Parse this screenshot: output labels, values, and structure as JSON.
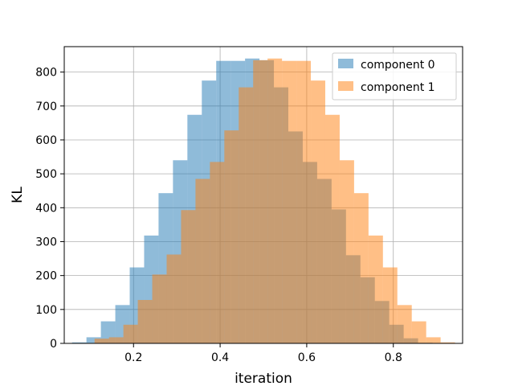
{
  "chart_data": {
    "type": "bar",
    "title": "",
    "xlabel": "iteration",
    "ylabel": "KL",
    "xlim": [
      0.04,
      0.96
    ],
    "ylim": [
      0,
      875
    ],
    "xticks": [
      0.2,
      0.4,
      0.6,
      0.8
    ],
    "xtick_labels": [
      "0.2",
      "0.4",
      "0.6",
      "0.8"
    ],
    "yticks": [
      0,
      100,
      200,
      300,
      400,
      500,
      600,
      700,
      800
    ],
    "ytick_labels": [
      "0",
      "100",
      "200",
      "300",
      "400",
      "500",
      "600",
      "700",
      "800"
    ],
    "grid": true,
    "legend_position": "top-right",
    "series": [
      {
        "name": "component 0",
        "color": "#1f77b4",
        "opacity": 0.5,
        "bin_edges": [
          0.058,
          0.0913,
          0.1246,
          0.1579,
          0.1912,
          0.2245,
          0.2578,
          0.2911,
          0.3244,
          0.3577,
          0.391,
          0.4243,
          0.4576,
          0.4909,
          0.5242,
          0.5575,
          0.5908,
          0.6241,
          0.6574,
          0.6907,
          0.724,
          0.7573,
          0.7906,
          0.8239,
          0.8572,
          0.8905
        ],
        "counts": [
          3,
          18,
          65,
          113,
          224,
          318,
          443,
          540,
          674,
          775,
          833,
          833,
          840,
          835,
          755,
          625,
          535,
          485,
          395,
          260,
          195,
          125,
          55,
          15,
          2
        ]
      },
      {
        "name": "component 1",
        "color": "#ff7f0e",
        "opacity": 0.5,
        "bin_edges": [
          0.11,
          0.1433,
          0.1766,
          0.2099,
          0.2432,
          0.2765,
          0.3098,
          0.3431,
          0.3764,
          0.4097,
          0.443,
          0.4763,
          0.5096,
          0.5429,
          0.5762,
          0.6095,
          0.6428,
          0.6761,
          0.7094,
          0.7427,
          0.776,
          0.8093,
          0.8426,
          0.8759,
          0.9092,
          0.9425
        ],
        "counts": [
          14,
          18,
          55,
          128,
          203,
          262,
          393,
          485,
          535,
          628,
          755,
          835,
          840,
          833,
          833,
          775,
          674,
          540,
          443,
          318,
          224,
          113,
          65,
          18,
          3
        ]
      }
    ]
  }
}
